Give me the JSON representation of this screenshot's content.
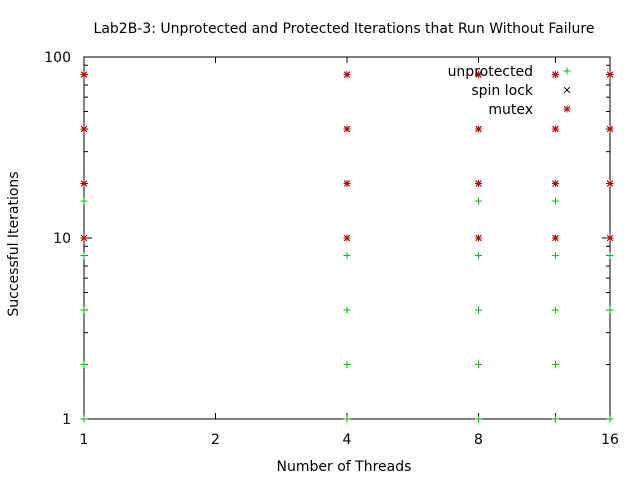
{
  "chart_data": {
    "type": "scatter",
    "title": "Lab2B-3: Unprotected and Protected Iterations that Run Without Failure",
    "xlabel": "Number of Threads",
    "ylabel": "Successful Iterations",
    "xscale": "log2",
    "yscale": "log10",
    "xlim": [
      1,
      16
    ],
    "ylim": [
      1,
      100
    ],
    "xticks": [
      1,
      2,
      4,
      8,
      12,
      16
    ],
    "xtick_labels": [
      "1",
      "2",
      "4",
      "8",
      "",
      "16"
    ],
    "yticks": [
      1,
      10,
      100
    ],
    "ytick_labels": [
      "1",
      "10",
      "100"
    ],
    "legend_position": "top-right",
    "series": [
      {
        "name": "unprotected",
        "marker": "+",
        "color": "#00c000",
        "points": [
          {
            "x": 1,
            "y": 1
          },
          {
            "x": 1,
            "y": 2
          },
          {
            "x": 1,
            "y": 4
          },
          {
            "x": 1,
            "y": 8
          },
          {
            "x": 1,
            "y": 16
          },
          {
            "x": 4,
            "y": 1
          },
          {
            "x": 4,
            "y": 2
          },
          {
            "x": 4,
            "y": 4
          },
          {
            "x": 4,
            "y": 8
          },
          {
            "x": 8,
            "y": 1
          },
          {
            "x": 8,
            "y": 2
          },
          {
            "x": 8,
            "y": 4
          },
          {
            "x": 8,
            "y": 8
          },
          {
            "x": 8,
            "y": 16
          },
          {
            "x": 12,
            "y": 1
          },
          {
            "x": 12,
            "y": 2
          },
          {
            "x": 12,
            "y": 4
          },
          {
            "x": 12,
            "y": 8
          },
          {
            "x": 12,
            "y": 16
          },
          {
            "x": 16,
            "y": 1
          },
          {
            "x": 16,
            "y": 4
          },
          {
            "x": 16,
            "y": 8
          }
        ]
      },
      {
        "name": "spin lock",
        "marker": "x",
        "color": "#000000",
        "points": [
          {
            "x": 1,
            "y": 10
          },
          {
            "x": 1,
            "y": 20
          },
          {
            "x": 1,
            "y": 40
          },
          {
            "x": 1,
            "y": 80
          },
          {
            "x": 4,
            "y": 10
          },
          {
            "x": 4,
            "y": 20
          },
          {
            "x": 4,
            "y": 40
          },
          {
            "x": 4,
            "y": 80
          },
          {
            "x": 8,
            "y": 10
          },
          {
            "x": 8,
            "y": 20
          },
          {
            "x": 8,
            "y": 40
          },
          {
            "x": 8,
            "y": 80
          },
          {
            "x": 12,
            "y": 10
          },
          {
            "x": 12,
            "y": 20
          },
          {
            "x": 12,
            "y": 40
          },
          {
            "x": 12,
            "y": 80
          },
          {
            "x": 16,
            "y": 10
          },
          {
            "x": 16,
            "y": 20
          },
          {
            "x": 16,
            "y": 40
          },
          {
            "x": 16,
            "y": 80
          }
        ]
      },
      {
        "name": "mutex",
        "marker": "*",
        "color": "#c00000",
        "points": [
          {
            "x": 1,
            "y": 10
          },
          {
            "x": 1,
            "y": 20
          },
          {
            "x": 1,
            "y": 40
          },
          {
            "x": 1,
            "y": 80
          },
          {
            "x": 4,
            "y": 10
          },
          {
            "x": 4,
            "y": 20
          },
          {
            "x": 4,
            "y": 40
          },
          {
            "x": 4,
            "y": 80
          },
          {
            "x": 8,
            "y": 10
          },
          {
            "x": 8,
            "y": 20
          },
          {
            "x": 8,
            "y": 40
          },
          {
            "x": 8,
            "y": 80
          },
          {
            "x": 12,
            "y": 10
          },
          {
            "x": 12,
            "y": 20
          },
          {
            "x": 12,
            "y": 40
          },
          {
            "x": 12,
            "y": 80
          },
          {
            "x": 16,
            "y": 10
          },
          {
            "x": 16,
            "y": 20
          },
          {
            "x": 16,
            "y": 40
          },
          {
            "x": 16,
            "y": 80
          }
        ]
      }
    ]
  }
}
